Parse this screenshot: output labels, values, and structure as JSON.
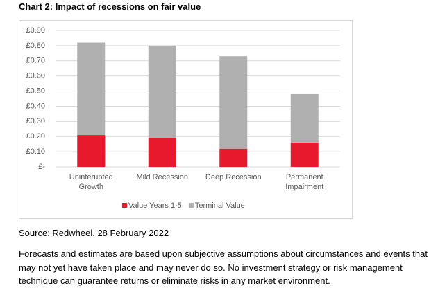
{
  "chart_data": {
    "type": "stacked_bar",
    "title": "Chart 2: Impact of recessions on fair value",
    "categories": [
      "Uninterupted Growth",
      "Mild Recession",
      "Deep Recession",
      "Permanent Impairment"
    ],
    "series": [
      {
        "name": "Value Years 1-5",
        "color": "#e8192c",
        "values": [
          0.21,
          0.19,
          0.12,
          0.16
        ]
      },
      {
        "name": "Terminal Value",
        "color": "#b0b0b0",
        "values": [
          0.61,
          0.61,
          0.61,
          0.32
        ]
      }
    ],
    "ylim": [
      0,
      0.9
    ],
    "yticks": [
      {
        "value": 0,
        "label": "£-"
      },
      {
        "value": 0.1,
        "label": "£0.10"
      },
      {
        "value": 0.2,
        "label": "£0.20"
      },
      {
        "value": 0.3,
        "label": "£0.30"
      },
      {
        "value": 0.4,
        "label": "£0.40"
      },
      {
        "value": 0.5,
        "label": "£0.50"
      },
      {
        "value": 0.6,
        "label": "£0.60"
      },
      {
        "value": 0.7,
        "label": "£0.70"
      },
      {
        "value": 0.8,
        "label": "£0.80"
      },
      {
        "value": 0.9,
        "label": "£0.90"
      }
    ],
    "grid": true,
    "legend": "bottom"
  },
  "source": "Source: Redwheel, 28 February 2022",
  "notes": "Forecasts and estimates are based upon subjective assumptions about circumstances and events that may not yet have taken place and may never do so. No investment strategy or risk management technique can guarantee returns or eliminate risks in any market environment."
}
